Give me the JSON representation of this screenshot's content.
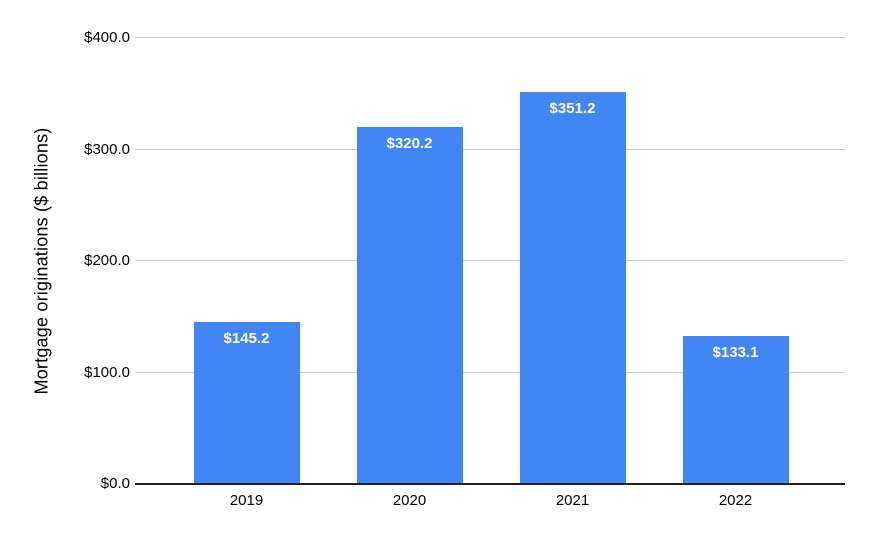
{
  "chart_data": {
    "type": "bar",
    "title": "",
    "xlabel": "",
    "ylabel": "Mortgage originations ($ billions)",
    "categories": [
      "2019",
      "2020",
      "2021",
      "2022"
    ],
    "values": [
      145.2,
      320.2,
      351.2,
      133.1
    ],
    "bar_labels": [
      "$145.2",
      "$320.2",
      "$351.2",
      "$133.1"
    ],
    "ylim": [
      0,
      400
    ],
    "yticks": [
      {
        "value": 0,
        "label": "$0.0"
      },
      {
        "value": 100,
        "label": "$100.0"
      },
      {
        "value": 200,
        "label": "$200.0"
      },
      {
        "value": 300,
        "label": "$300.0"
      },
      {
        "value": 400,
        "label": "$400.0"
      }
    ],
    "grid": true,
    "legend": "none",
    "colors": {
      "bar": "#4285F4",
      "bar_label_text": "#ffffff",
      "gridline": "#cccccc",
      "axis_line": "#212121",
      "tick_label_text": "#000000",
      "background": "#ffffff"
    }
  }
}
